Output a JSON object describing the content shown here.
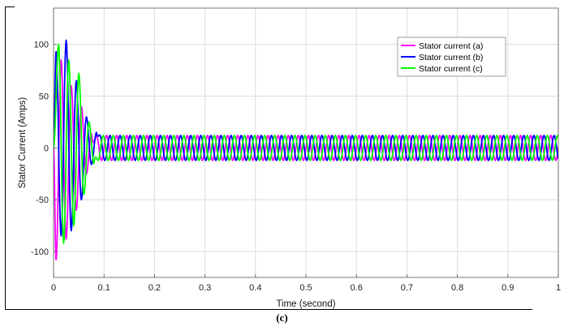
{
  "chart_data": {
    "type": "line",
    "title": "",
    "xlabel": "Time (second)",
    "ylabel": "Stator Current (Amps)",
    "xlim": [
      0,
      1
    ],
    "ylim": [
      -125,
      135
    ],
    "xticks": [
      0,
      0.1,
      0.2,
      0.3,
      0.4,
      0.5,
      0.6,
      0.7,
      0.8,
      0.9,
      1
    ],
    "xtick_labels": [
      "0",
      "0.1",
      "0.2",
      "0.3",
      "0.4",
      "0.5",
      "0.6",
      "0.7",
      "0.8",
      "0.9",
      "1"
    ],
    "yticks": [
      -100,
      -50,
      0,
      50,
      100
    ],
    "ytick_labels": [
      "-100",
      "-50",
      "0",
      "50",
      "100"
    ],
    "grid": true,
    "legend_position": "top-right",
    "frequency_hz": 50,
    "steady_state_amplitude": 12,
    "series": [
      {
        "name": "Stator current (a)",
        "color": "#ff00ff",
        "phase_deg": 0,
        "transient_peaks": [
          {
            "t": 0.005,
            "i": -108
          },
          {
            "t": 0.015,
            "i": 85
          },
          {
            "t": 0.025,
            "i": -88
          },
          {
            "t": 0.035,
            "i": 60
          },
          {
            "t": 0.045,
            "i": -60
          },
          {
            "t": 0.055,
            "i": 40
          },
          {
            "t": 0.065,
            "i": -25
          },
          {
            "t": 0.075,
            "i": 14
          }
        ]
      },
      {
        "name": "Stator current (b)",
        "color": "#0000ff",
        "phase_deg": -120,
        "transient_peaks": [
          {
            "t": 0.005,
            "i": 93
          },
          {
            "t": 0.015,
            "i": -85
          },
          {
            "t": 0.025,
            "i": 104
          },
          {
            "t": 0.035,
            "i": -80
          },
          {
            "t": 0.045,
            "i": 65
          },
          {
            "t": 0.055,
            "i": -50
          },
          {
            "t": 0.065,
            "i": 30
          },
          {
            "t": 0.075,
            "i": -16
          },
          {
            "t": 0.085,
            "i": 15
          }
        ]
      },
      {
        "name": "Stator current (c)",
        "color": "#00ff00",
        "phase_deg": 120,
        "transient_peaks": [
          {
            "t": 0.01,
            "i": 100
          },
          {
            "t": 0.02,
            "i": -92
          },
          {
            "t": 0.03,
            "i": 85
          },
          {
            "t": 0.04,
            "i": -75
          },
          {
            "t": 0.05,
            "i": 72
          },
          {
            "t": 0.06,
            "i": -45
          },
          {
            "t": 0.07,
            "i": 25
          },
          {
            "t": 0.08,
            "i": -15
          }
        ]
      }
    ]
  },
  "caption": "(c)"
}
